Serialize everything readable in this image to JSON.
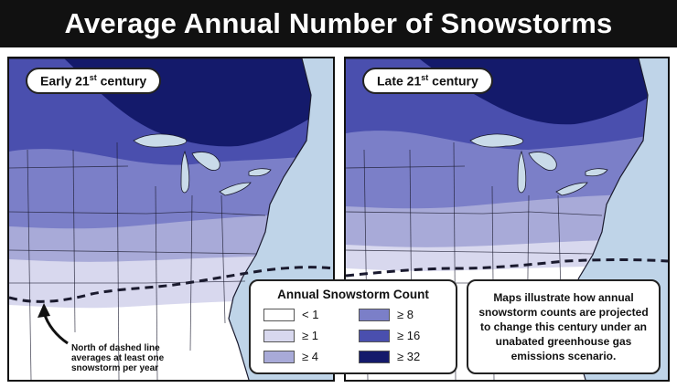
{
  "title": "Average Annual Number of Snowstorms",
  "panels": [
    {
      "label_main": "Early 21",
      "label_sup": "st",
      "label_end": " century"
    },
    {
      "label_main": "Late 21",
      "label_sup": "st",
      "label_end": " century"
    }
  ],
  "legend": {
    "title": "Annual Snowstorm Count",
    "items": [
      {
        "label": "< 1",
        "color": "#ffffff"
      },
      {
        "label": "≥ 1",
        "color": "#d8d8ee"
      },
      {
        "label": "≥ 4",
        "color": "#a8aad8"
      },
      {
        "label": "≥ 8",
        "color": "#7b7fc8"
      },
      {
        "label": "≥ 16",
        "color": "#4a4fae"
      },
      {
        "label": "≥ 32",
        "color": "#141a6b"
      }
    ]
  },
  "note": "Maps illustrate how annual snowstorm counts are projected to change this century under an unabated greenhouse gas emissions scenario.",
  "annotation": "North of dashed line averages at least one snowstorm per year",
  "colors": {
    "water": "#bfd4e8",
    "lakes": "#c9dbe9",
    "title_bg": "#111111"
  }
}
